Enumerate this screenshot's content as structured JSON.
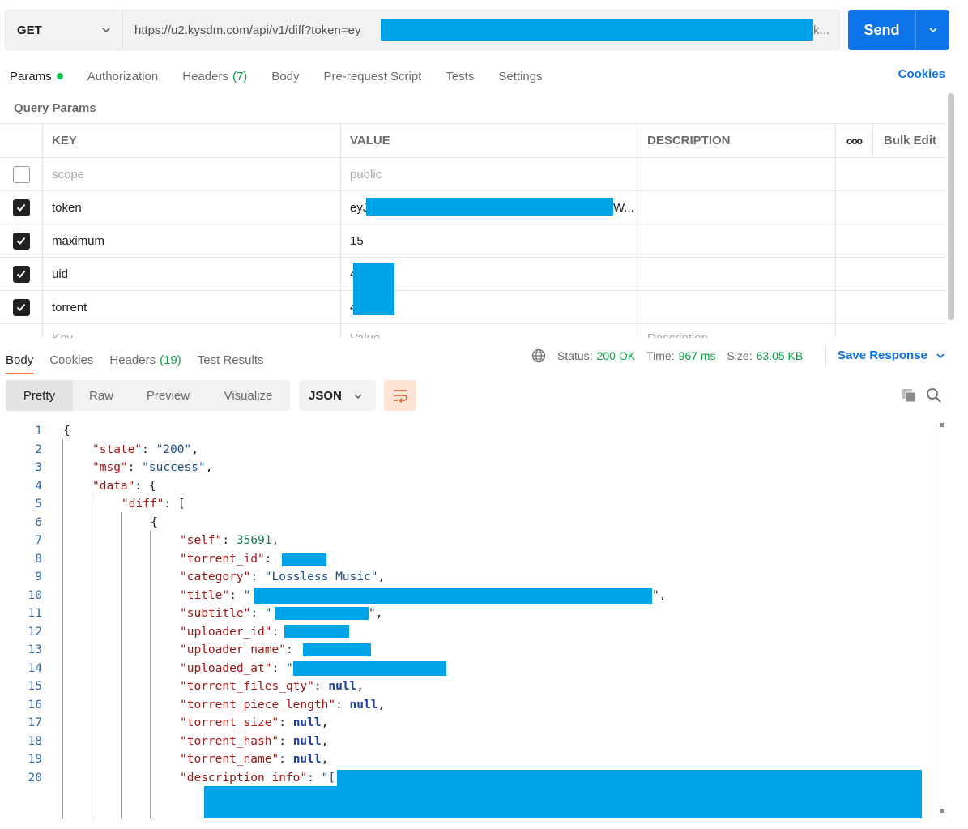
{
  "request": {
    "method": "GET",
    "url": "https://u2.kysdm.com/api/v1/diff?token=ey",
    "url_ellipsis": "k...",
    "send_label": "Send"
  },
  "request_tabs": {
    "params": "Params",
    "authorization": "Authorization",
    "headers": "Headers",
    "headers_count": "(7)",
    "body": "Body",
    "prerequest": "Pre-request Script",
    "tests": "Tests",
    "settings": "Settings",
    "cookies": "Cookies"
  },
  "query_params": {
    "title": "Query Params",
    "headers": {
      "key": "KEY",
      "value": "VALUE",
      "description": "DESCRIPTION",
      "more": "ooo",
      "bulk_edit": "Bulk Edit"
    },
    "rows": [
      {
        "key": "scope",
        "value": "public",
        "checked": false
      },
      {
        "key": "token",
        "value": "eyJ",
        "value_tail": "W...",
        "checked": true
      },
      {
        "key": "maximum",
        "value": "15",
        "checked": true
      },
      {
        "key": "uid",
        "value": "4",
        "checked": true
      },
      {
        "key": "torrent",
        "value": "4",
        "checked": true
      }
    ],
    "placeholder": {
      "key": "Key",
      "value": "Value",
      "description": "Description"
    }
  },
  "response_tabs": {
    "body": "Body",
    "cookies": "Cookies",
    "headers": "Headers",
    "headers_count": "(19)",
    "test_results": "Test Results"
  },
  "response_status": {
    "status_label": "Status:",
    "status_value": "200 OK",
    "time_label": "Time:",
    "time_value": "967 ms",
    "size_label": "Size:",
    "size_value": "63.05 KB",
    "save_response": "Save Response"
  },
  "view_modes": [
    "Pretty",
    "Raw",
    "Preview",
    "Visualize"
  ],
  "format": "JSON",
  "code_lines": [
    {
      "n": "1",
      "kind": "brace",
      "text": "{"
    },
    {
      "n": "2",
      "kind": "str",
      "key": "\"state\"",
      "value": "\"200\"",
      "tail": ","
    },
    {
      "n": "3",
      "kind": "str",
      "key": "\"msg\"",
      "value": "\"success\"",
      "tail": ","
    },
    {
      "n": "4",
      "kind": "open",
      "key": "\"data\"",
      "value": "{"
    },
    {
      "n": "5",
      "kind": "open",
      "key": "\"diff\"",
      "value": "["
    },
    {
      "n": "6",
      "kind": "brace",
      "text": "{"
    },
    {
      "n": "7",
      "kind": "num",
      "key": "\"self\"",
      "value": "35691",
      "tail": ","
    },
    {
      "n": "8",
      "kind": "red",
      "key": "\"torrent_id\""
    },
    {
      "n": "9",
      "kind": "str",
      "key": "\"category\"",
      "value": "\"Lossless Music\"",
      "tail": ","
    },
    {
      "n": "10",
      "kind": "red",
      "key": "\"title\"",
      "value": "\"",
      "tail": "\","
    },
    {
      "n": "11",
      "kind": "red",
      "key": "\"subtitle\"",
      "value": "\"",
      "tail": "\","
    },
    {
      "n": "12",
      "kind": "red",
      "key": "\"uploader_id\""
    },
    {
      "n": "13",
      "kind": "red",
      "key": "\"uploader_name\""
    },
    {
      "n": "14",
      "kind": "red",
      "key": "\"uploaded_at\"",
      "value": "\""
    },
    {
      "n": "15",
      "kind": "null",
      "key": "\"torrent_files_qty\"",
      "value": "null",
      "tail": ","
    },
    {
      "n": "16",
      "kind": "null",
      "key": "\"torrent_piece_length\"",
      "value": "null",
      "tail": ","
    },
    {
      "n": "17",
      "kind": "null",
      "key": "\"torrent_size\"",
      "value": "null",
      "tail": ","
    },
    {
      "n": "18",
      "kind": "null",
      "key": "\"torrent_hash\"",
      "value": "null",
      "tail": ","
    },
    {
      "n": "19",
      "kind": "null",
      "key": "\"torrent_name\"",
      "value": "null",
      "tail": ","
    },
    {
      "n": "20",
      "kind": "red",
      "key": "\"description_info\"",
      "value": "\"["
    }
  ],
  "colors": {
    "accent": "#0c73e8",
    "success": "#0c9d47",
    "tab_underline": "#f26b3a",
    "redaction": "#00a2e8"
  }
}
